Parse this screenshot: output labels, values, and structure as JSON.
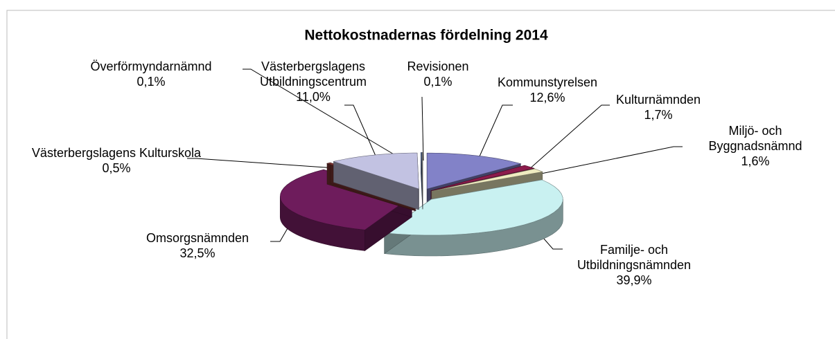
{
  "chart_data": {
    "type": "pie",
    "title": "Nettokostnadernas fördelning 2014",
    "categories": [
      "Kommunstyrelsen",
      "Kulturnämnden",
      "Miljö- och Byggnadsnämnd",
      "Familje- och Utbildningsnämnden",
      "Omsorgsnämnden",
      "Västerbergslagens Kulturskola",
      "Västerbergslagens Utbildningscentrum",
      "Överförmyndarnämnd",
      "Revisionen"
    ],
    "values": [
      12.6,
      1.7,
      1.6,
      39.9,
      32.5,
      0.5,
      11.0,
      0.1,
      0.1
    ],
    "value_labels": [
      "12,6%",
      "1,7%",
      "1,6%",
      "39,9%",
      "32,5%",
      "0,5%",
      "11,0%",
      "0,1%",
      "0,1%"
    ],
    "colors": [
      "#8282c8",
      "#8c1c4c",
      "#efebc0",
      "#c9f1f1",
      "#6e1c5c",
      "#7c3432",
      "#c2c2e2",
      "#4262a2",
      "#a4a4a4"
    ]
  }
}
